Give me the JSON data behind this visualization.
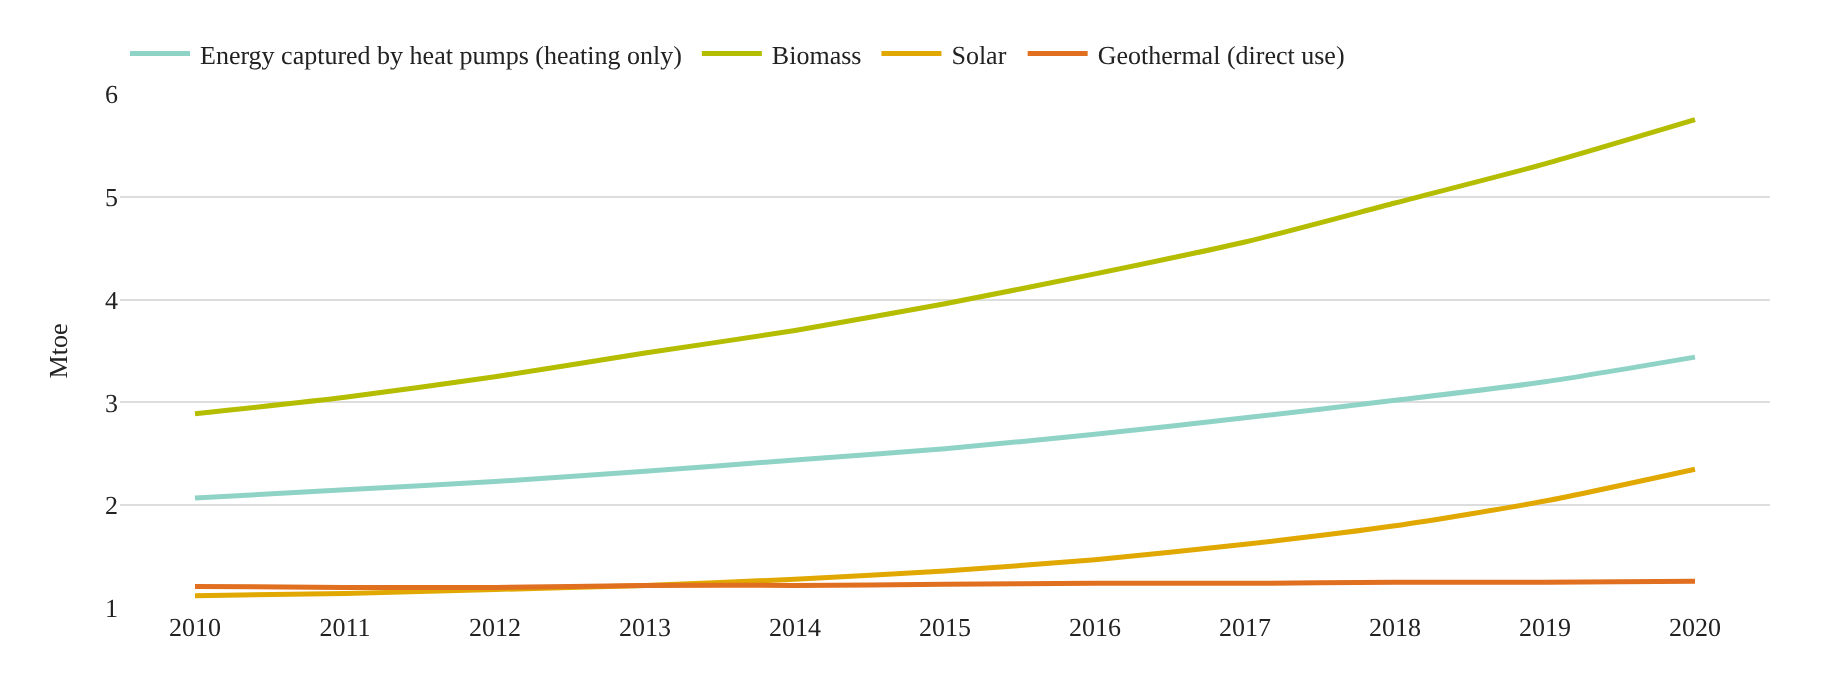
{
  "chart_data": {
    "type": "line",
    "ylabel": "Mtoe",
    "categories": [
      "2010",
      "2011",
      "2012",
      "2013",
      "2014",
      "2015",
      "2016",
      "2017",
      "2018",
      "2019",
      "2020"
    ],
    "series": [
      {
        "name": "Energy captured by heat pumps (heating only)",
        "color": "#8fd3c7",
        "values": [
          2.07,
          2.15,
          2.23,
          2.33,
          2.44,
          2.55,
          2.69,
          2.85,
          3.02,
          3.2,
          3.44
        ]
      },
      {
        "name": "Biomass",
        "color": "#b5bd00",
        "values": [
          2.89,
          3.05,
          3.25,
          3.48,
          3.7,
          3.96,
          4.25,
          4.56,
          4.94,
          5.32,
          5.75
        ]
      },
      {
        "name": "Solar",
        "color": "#e0a800",
        "values": [
          1.12,
          1.14,
          1.18,
          1.22,
          1.28,
          1.36,
          1.47,
          1.62,
          1.8,
          2.04,
          2.35
        ]
      },
      {
        "name": "Geothermal (direct use)",
        "color": "#e06f1f",
        "values": [
          1.21,
          1.2,
          1.2,
          1.22,
          1.22,
          1.23,
          1.24,
          1.24,
          1.25,
          1.25,
          1.26
        ]
      }
    ],
    "ylim": [
      1,
      6
    ],
    "yticks": [
      1,
      2,
      3,
      4,
      5,
      6
    ],
    "grid": "y",
    "legend": "top left",
    "marker": "none",
    "line_style": "solid"
  }
}
